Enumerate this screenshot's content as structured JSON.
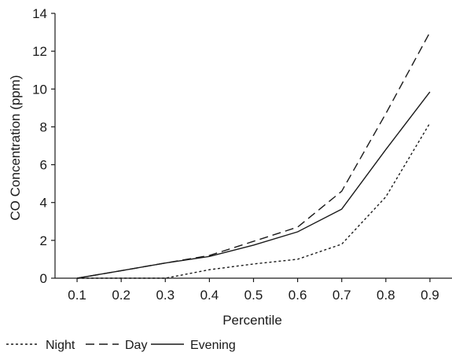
{
  "chart_data": {
    "type": "line",
    "xlabel": "Percentile",
    "ylabel": "CO Concentration (ppm)",
    "x": [
      0.1,
      0.2,
      0.3,
      0.4,
      0.5,
      0.6,
      0.7,
      0.8,
      0.9
    ],
    "x_tick_labels": [
      "0.1",
      "0.2",
      "0.3",
      "0.4",
      "0.5",
      "0.6",
      "0.7",
      "0.8",
      "0.9"
    ],
    "y_ticks": [
      0,
      2,
      4,
      6,
      8,
      10,
      12,
      14
    ],
    "y_tick_labels": [
      "0",
      "2",
      "4",
      "6",
      "8",
      "10",
      "12",
      "14"
    ],
    "xlim": [
      0.05,
      0.95
    ],
    "ylim": [
      0,
      14
    ],
    "grid": false,
    "legend_position": "bottom-left",
    "series": [
      {
        "name": "Night",
        "dash": "dotted",
        "values": [
          0,
          0,
          0,
          0.45,
          0.75,
          1.0,
          1.8,
          4.3,
          8.2
        ]
      },
      {
        "name": "Day",
        "dash": "dashed",
        "values": [
          0,
          0.4,
          0.8,
          1.2,
          1.95,
          2.7,
          4.6,
          8.7,
          13.0
        ]
      },
      {
        "name": "Evening",
        "dash": "solid",
        "values": [
          0,
          0.4,
          0.8,
          1.15,
          1.75,
          2.45,
          3.65,
          6.8,
          9.85
        ]
      }
    ]
  }
}
